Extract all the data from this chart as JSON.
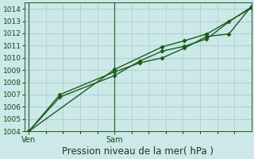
{
  "xlabel": "Pression niveau de la mer( hPa )",
  "bg_color": "#cce8e8",
  "grid_color": "#aacccc",
  "line_color": "#1a5c1a",
  "ylim": [
    1004,
    1014.5
  ],
  "yticks": [
    1004,
    1005,
    1006,
    1007,
    1008,
    1009,
    1010,
    1011,
    1012,
    1013,
    1014
  ],
  "xtick_labels": [
    "Ven",
    "Sam"
  ],
  "xtick_pos": [
    0.0,
    0.385
  ],
  "xlim": [
    -0.02,
    1.0
  ],
  "series": [
    {
      "x": [
        0.0,
        0.14,
        0.385,
        0.5,
        0.6,
        0.7,
        0.8,
        0.9,
        1.0
      ],
      "y": [
        1004.0,
        1006.8,
        1008.55,
        1009.75,
        1010.55,
        1010.95,
        1011.55,
        1012.95,
        1014.15
      ],
      "marker": "D",
      "ms": 2.5,
      "lw": 1.0
    },
    {
      "x": [
        0.0,
        0.14,
        0.385,
        0.5,
        0.6,
        0.7,
        0.8,
        0.9,
        1.0
      ],
      "y": [
        1004.0,
        1007.0,
        1008.85,
        1009.6,
        1010.0,
        1010.8,
        1011.75,
        1011.95,
        1014.2
      ],
      "marker": "D",
      "ms": 2.5,
      "lw": 1.0
    },
    {
      "x": [
        0.0,
        0.385,
        0.6,
        0.7,
        0.8,
        1.0
      ],
      "y": [
        1004.0,
        1009.05,
        1010.9,
        1011.4,
        1011.95,
        1014.05
      ],
      "marker": "D",
      "ms": 2.5,
      "lw": 1.0
    }
  ],
  "vline_positions": [
    0.0,
    0.385
  ],
  "vline_color": "#336633",
  "xlabel_fontsize": 8.5,
  "ytick_fontsize": 6.5,
  "xtick_fontsize": 7
}
